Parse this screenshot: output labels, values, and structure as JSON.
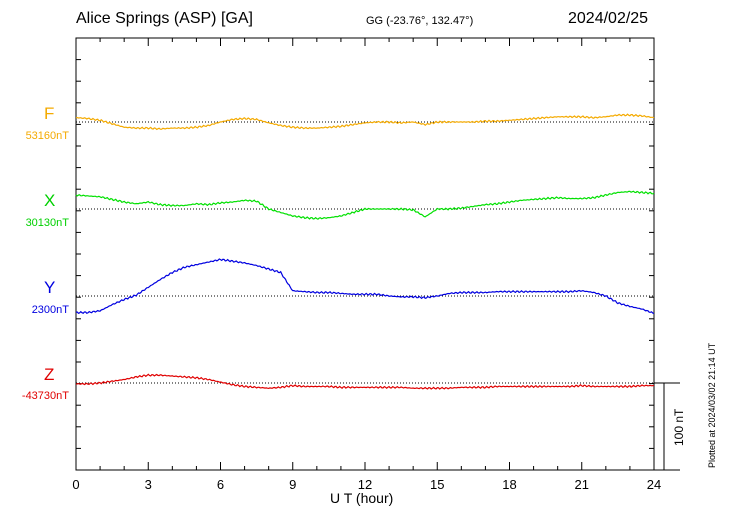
{
  "header": {
    "station": "Alice Springs (ASP)  [GA]",
    "coords": "GG (-23.76°, 132.47°)",
    "date": "2024/02/25"
  },
  "plotted_note": "Plotted at 2024/03/02 21:14 UT",
  "colors": {
    "F": "#f4aa00",
    "X": "#00e000",
    "Y": "#0000e0",
    "Z": "#e00000",
    "axis": "#000000"
  },
  "chart_data": {
    "type": "line",
    "xlabel": "U T (hour)",
    "xlim": [
      0,
      24
    ],
    "xticks": [
      0,
      3,
      6,
      9,
      12,
      15,
      18,
      21,
      24
    ],
    "scale_bar": {
      "value": 100,
      "label": "100 nT"
    },
    "grid": "dotted baseline per channel",
    "series": [
      {
        "name": "F",
        "baseline_label": "53160nT",
        "baseline": 53160,
        "x": [
          0,
          0.5,
          1,
          1.5,
          2,
          2.5,
          3,
          3.5,
          4,
          4.5,
          5,
          5.5,
          6,
          6.5,
          7,
          7.5,
          8,
          8.5,
          9,
          9.5,
          10,
          10.5,
          11,
          11.5,
          12,
          12.5,
          13,
          13.5,
          14,
          14.5,
          15,
          15.5,
          16,
          16.5,
          17,
          17.5,
          18,
          18.5,
          19,
          19.5,
          20,
          20.5,
          21,
          21.5,
          22,
          22.5,
          23,
          23.5,
          24
        ],
        "y": [
          53165,
          53164,
          53162,
          53158,
          53154,
          53153,
          53153,
          53152,
          53153,
          53153,
          53154,
          53156,
          53160,
          53163,
          53164,
          53163,
          53159,
          53156,
          53154,
          53153,
          53153,
          53154,
          53155,
          53157,
          53159,
          53160,
          53160,
          53159,
          53160,
          53157,
          53160,
          53160,
          53160,
          53160,
          53161,
          53161,
          53162,
          53163,
          53164,
          53165,
          53166,
          53166,
          53166,
          53165,
          53166,
          53168,
          53168,
          53167,
          53165
        ]
      },
      {
        "name": "X",
        "baseline_label": "30130nT",
        "baseline": 30130,
        "x": [
          0,
          0.5,
          1,
          1.5,
          2,
          2.5,
          3,
          3.5,
          4,
          4.5,
          5,
          5.5,
          6,
          6.5,
          7,
          7.5,
          8,
          8.5,
          9,
          9.5,
          10,
          10.5,
          11,
          11.5,
          12,
          12.5,
          13,
          13.5,
          14,
          14.5,
          15,
          15.5,
          16,
          16.5,
          17,
          17.5,
          18,
          18.5,
          19,
          19.5,
          20,
          20.5,
          21,
          21.5,
          22,
          22.5,
          23,
          23.5,
          24
        ],
        "y": [
          30146,
          30145,
          30144,
          30141,
          30138,
          30136,
          30138,
          30135,
          30134,
          30134,
          30136,
          30135,
          30137,
          30138,
          30140,
          30139,
          30130,
          30126,
          30122,
          30120,
          30119,
          30120,
          30122,
          30126,
          30130,
          30130,
          30130,
          30130,
          30129,
          30121,
          30130,
          30130,
          30131,
          30133,
          30135,
          30136,
          30138,
          30140,
          30141,
          30142,
          30143,
          30142,
          30142,
          30143,
          30146,
          30149,
          30150,
          30149,
          30148
        ]
      },
      {
        "name": "Y",
        "baseline_label": "2300nT",
        "baseline": 2300,
        "x": [
          0,
          0.5,
          1,
          1.5,
          2,
          2.5,
          3,
          3.5,
          4,
          4.5,
          5,
          5.5,
          6,
          6.5,
          7,
          7.5,
          8,
          8.5,
          9,
          9.5,
          10,
          10.5,
          11,
          11.5,
          12,
          12.5,
          13,
          13.5,
          14,
          14.5,
          15,
          15.5,
          16,
          16.5,
          17,
          17.5,
          18,
          18.5,
          19,
          19.5,
          20,
          20.5,
          21,
          21.5,
          22,
          22.5,
          23,
          23.5,
          24
        ],
        "y": [
          2281,
          2281,
          2283,
          2290,
          2296,
          2301,
          2310,
          2319,
          2327,
          2333,
          2336,
          2339,
          2342,
          2340,
          2338,
          2335,
          2331,
          2327,
          2306,
          2305,
          2304,
          2304,
          2303,
          2302,
          2302,
          2302,
          2300,
          2299,
          2299,
          2298,
          2300,
          2303,
          2304,
          2304,
          2304,
          2305,
          2305,
          2305,
          2305,
          2305,
          2305,
          2305,
          2306,
          2304,
          2300,
          2292,
          2288,
          2285,
          2280
        ]
      },
      {
        "name": "Z",
        "baseline_label": "-43730nT",
        "baseline": -43730,
        "x": [
          0,
          0.5,
          1,
          1.5,
          2,
          2.5,
          3,
          3.5,
          4,
          4.5,
          5,
          5.5,
          6,
          6.5,
          7,
          7.5,
          8,
          8.5,
          9,
          9.5,
          10,
          10.5,
          11,
          11.5,
          12,
          12.5,
          13,
          13.5,
          14,
          14.5,
          15,
          15.5,
          16,
          16.5,
          17,
          17.5,
          18,
          18.5,
          19,
          19.5,
          20,
          20.5,
          21,
          21.5,
          22,
          22.5,
          23,
          23.5,
          24
        ],
        "y": [
          -43731,
          -43731,
          -43730,
          -43728,
          -43726,
          -43723,
          -43721,
          -43721,
          -43722,
          -43723,
          -43724,
          -43726,
          -43729,
          -43732,
          -43734,
          -43735,
          -43736,
          -43735,
          -43733,
          -43734,
          -43734,
          -43734,
          -43735,
          -43735,
          -43735,
          -43735,
          -43735,
          -43735,
          -43736,
          -43736,
          -43736,
          -43736,
          -43735,
          -43735,
          -43735,
          -43734,
          -43734,
          -43734,
          -43734,
          -43734,
          -43734,
          -43734,
          -43733,
          -43734,
          -43734,
          -43734,
          -43734,
          -43733,
          -43733
        ]
      }
    ]
  }
}
